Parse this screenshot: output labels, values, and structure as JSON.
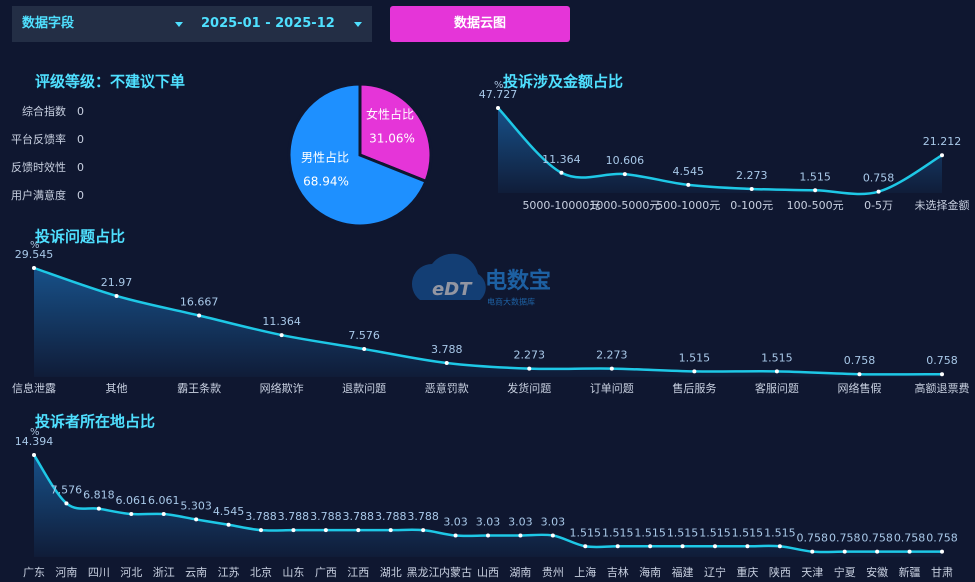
{
  "toolbar": {
    "field_select": "数据字段",
    "date_range": "2025-01 - 2025-12",
    "button": "数据云图"
  },
  "rating": {
    "title": "评级等级：不建议下单",
    "items": [
      {
        "label": "综合指数",
        "value": 0
      },
      {
        "label": "平台反馈率",
        "value": 0
      },
      {
        "label": "反馈时效性",
        "value": 0
      },
      {
        "label": "用户满意度",
        "value": 0
      }
    ]
  },
  "watermark": {
    "logo": "eDT",
    "name": "电数宝",
    "tagline": "电商大数据库"
  },
  "chart_data": [
    {
      "type": "pie",
      "categories": [
        "男性占比",
        "女性占比"
      ],
      "values": [
        68.94,
        31.06
      ],
      "value_labels": [
        "68.94%",
        "31.06%"
      ],
      "colors": [
        "#1e90ff",
        "#e535d8"
      ]
    },
    {
      "type": "line",
      "title": "投诉涉及金额占比",
      "unit": "%",
      "color": "#1ec8e6",
      "categories": [
        null,
        "5000-10000元",
        "1000-5000元",
        "500-1000元",
        "0-100元",
        "100-500元",
        "0-5万",
        "未选择金额"
      ],
      "values": [
        47.727,
        11.364,
        10.606,
        4.545,
        2.273,
        1.515,
        0.758,
        21.212
      ]
    },
    {
      "type": "line",
      "title": "投诉问题占比",
      "unit": "%",
      "color": "#1ec8e6",
      "categories": [
        "信息泄露",
        "其他",
        "霸王条款",
        "网络欺诈",
        "退款问题",
        "恶意罚款",
        "发货问题",
        "订单问题",
        "售后服务",
        "客服问题",
        "网络售假",
        "高额退票费"
      ],
      "values": [
        29.545,
        21.97,
        16.667,
        11.364,
        7.576,
        3.788,
        2.273,
        2.273,
        1.515,
        1.515,
        0.758,
        0.758
      ]
    },
    {
      "type": "line",
      "title": "投诉者所在地占比",
      "unit": "%",
      "color": "#1ec8e6",
      "categories": [
        "广东",
        "河南",
        "四川",
        "河北",
        "浙江",
        "云南",
        "江苏",
        "北京",
        "山东",
        "广西",
        "江西",
        "湖北",
        "黑龙江",
        "内蒙古",
        "山西",
        "湖南",
        "贵州",
        "上海",
        "吉林",
        "海南",
        "福建",
        "辽宁",
        "重庆",
        "陕西",
        "天津",
        "宁夏",
        "安徽",
        "新疆",
        "甘肃"
      ],
      "values": [
        14.394,
        7.576,
        6.818,
        6.061,
        6.061,
        5.303,
        4.545,
        3.788,
        3.788,
        3.788,
        3.788,
        3.788,
        3.788,
        3.03,
        3.03,
        3.03,
        3.03,
        1.515,
        1.515,
        1.515,
        1.515,
        1.515,
        1.515,
        1.515,
        0.758,
        0.758,
        0.758,
        0.758,
        0.758
      ]
    }
  ]
}
